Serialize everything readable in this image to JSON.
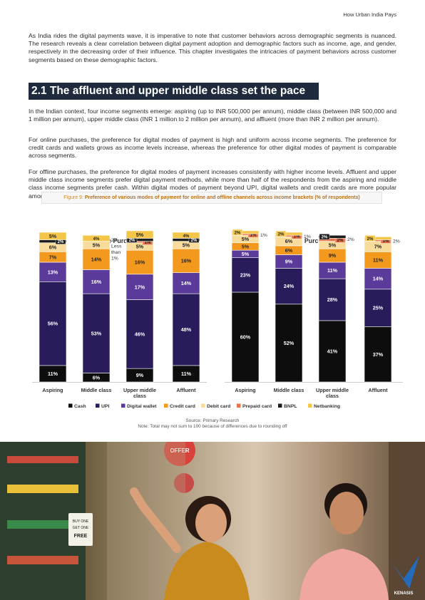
{
  "header": {
    "running_title": "How Urban India Pays"
  },
  "intro_paragraph": "As India rides the digital payments wave, it is imperative to note that customer behaviors across demographic segments is nuanced. The research reveals a clear correlation between digital payment adoption and demographic factors such as income, age, and gender, respectively in the decreasing order of their influence. This chapter investigates the intricacies of payment behaviors across customer segments based on these demographic factors.",
  "section": {
    "heading": "2.1 The affluent and upper middle class set the pace",
    "paragraphs": [
      "In the Indian context, four income segments emerge: aspiring (up to INR 500,000 per annum), middle class (between INR 500,000 and 1 million per annum), upper middle class (INR 1 million to 2 million per annum), and affluent (more than INR 2 million per annum).",
      "For online purchases, the preference for digital modes of payment is high and uniform across income segments. The preference for credit cards and wallets grows as income levels increase, whereas the preference for other digital modes of payment is comparable across segments.",
      "For offline purchases, the preference for digital modes of payment increases consistently with higher income levels. Affluent and upper middle class income segments prefer digital payment methods, while more than half of the respondents from the aspiring and middle class income segments prefer cash. Within digital modes of payment beyond UPI, digital wallets and credit cards are more popular among consumers from upper middle class and affluent income segments than in other segments."
    ]
  },
  "figure": {
    "label": "Figure 9: ",
    "title": "Preference of various modes of payment for online and offline channels across income brackets (% of respondents)",
    "source": "Source: Primary Research",
    "note": "Note: Total may not sum to 100 because of differences due to rounding off"
  },
  "chart_data": {
    "type": "bar",
    "stacked": true,
    "series_names": [
      "Cash",
      "UPI",
      "Digital wallet",
      "Credit card",
      "Debit card",
      "Prepaid card",
      "BNPL",
      "Netbanking"
    ],
    "colors": {
      "Cash": "#0d0d0d",
      "UPI": "#2a1c5a",
      "Digital wallet": "#5b3b9a",
      "Credit card": "#f39a1e",
      "Debit card": "#f7dc9c",
      "Prepaid card": "#e8734a",
      "BNPL": "#1c1c1c",
      "Netbanking": "#f3c64a"
    },
    "legend_position": "bottom",
    "panels": [
      {
        "title": "Online Purchases",
        "categories": [
          "Aspiring",
          "Middle class",
          "Upper middle class",
          "Affluent"
        ],
        "stacks": [
          [
            {
              "series": "Cash",
              "value": 11,
              "label": "11%"
            },
            {
              "series": "UPI",
              "value": 56,
              "label": "56%"
            },
            {
              "series": "Digital wallet",
              "value": 13,
              "label": "13%"
            },
            {
              "series": "Credit card",
              "value": 7,
              "label": "7%"
            },
            {
              "series": "Debit card",
              "value": 6,
              "label": "6%"
            },
            {
              "series": "BNPL",
              "value": 2,
              "label": "2%"
            },
            {
              "series": "Netbanking",
              "value": 5,
              "label": "5%"
            }
          ],
          [
            {
              "series": "Cash",
              "value": 6,
              "label": "6%"
            },
            {
              "series": "UPI",
              "value": 53,
              "label": "53%"
            },
            {
              "series": "Digital wallet",
              "value": 16,
              "label": "16%"
            },
            {
              "series": "Credit card",
              "value": 14,
              "label": "14%"
            },
            {
              "series": "Debit card",
              "value": 5,
              "label": "5%"
            },
            {
              "series": "Netbanking",
              "value": 4,
              "label": "4%"
            }
          ],
          [
            {
              "series": "Cash",
              "value": 9,
              "label": "9%"
            },
            {
              "series": "UPI",
              "value": 46,
              "label": "46%"
            },
            {
              "series": "Digital wallet",
              "value": 17,
              "label": "17%"
            },
            {
              "series": "Credit card",
              "value": 16,
              "label": "16%"
            },
            {
              "series": "Debit card",
              "value": 5,
              "label": "5%"
            },
            {
              "series": "Prepaid card",
              "value": 1,
              "label": "1%"
            },
            {
              "series": "BNPL",
              "value": 2,
              "label": "2%"
            },
            {
              "series": "Netbanking",
              "value": 5,
              "label": "5%"
            }
          ],
          [
            {
              "series": "Cash",
              "value": 11,
              "label": "11%"
            },
            {
              "series": "UPI",
              "value": 48,
              "label": "48%"
            },
            {
              "series": "Digital wallet",
              "value": 14,
              "label": "14%"
            },
            {
              "series": "Credit card",
              "value": 16,
              "label": "16%"
            },
            {
              "series": "Debit card",
              "value": 5,
              "label": "5%"
            },
            {
              "series": "BNPL",
              "value": 2,
              "label": "2%"
            },
            {
              "series": "Netbanking",
              "value": 4,
              "label": "4%"
            }
          ]
        ],
        "side_annotations": [
          {
            "category": 1,
            "text": [
              "2%",
              "Less",
              "than",
              "1%"
            ]
          }
        ]
      },
      {
        "title": "Offline Purchases",
        "categories": [
          "Aspiring",
          "Middle class",
          "Upper middle class",
          "Affluent"
        ],
        "stacks": [
          [
            {
              "series": "Cash",
              "value": 60,
              "label": "60%"
            },
            {
              "series": "UPI",
              "value": 23,
              "label": "23%"
            },
            {
              "series": "Digital wallet",
              "value": 5,
              "label": "5%"
            },
            {
              "series": "Credit card",
              "value": 5,
              "label": "5%"
            },
            {
              "series": "Debit card",
              "value": 5,
              "label": "5%"
            },
            {
              "series": "Prepaid card",
              "value": 1,
              "label": "1%"
            },
            {
              "series": "Netbanking",
              "value": 2,
              "label": "2%"
            }
          ],
          [
            {
              "series": "Cash",
              "value": 52,
              "label": "52%"
            },
            {
              "series": "UPI",
              "value": 24,
              "label": "24%"
            },
            {
              "series": "Digital wallet",
              "value": 9,
              "label": "9%"
            },
            {
              "series": "Credit card",
              "value": 6,
              "label": "6%"
            },
            {
              "series": "Debit card",
              "value": 6,
              "label": "6%"
            },
            {
              "series": "Prepaid card",
              "value": 1,
              "label": "1%"
            },
            {
              "series": "Netbanking",
              "value": 2,
              "label": "2%"
            }
          ],
          [
            {
              "series": "Cash",
              "value": 41,
              "label": "41%"
            },
            {
              "series": "UPI",
              "value": 28,
              "label": "28%"
            },
            {
              "series": "Digital wallet",
              "value": 11,
              "label": "11%"
            },
            {
              "series": "Credit card",
              "value": 9,
              "label": "9%"
            },
            {
              "series": "Debit card",
              "value": 5,
              "label": "5%"
            },
            {
              "series": "Prepaid card",
              "value": 2,
              "label": "2%"
            },
            {
              "series": "BNPL",
              "value": 2,
              "label": "2%"
            }
          ],
          [
            {
              "series": "Cash",
              "value": 37,
              "label": "37%"
            },
            {
              "series": "UPI",
              "value": 25,
              "label": "25%"
            },
            {
              "series": "Digital wallet",
              "value": 14,
              "label": "14%"
            },
            {
              "series": "Credit card",
              "value": 11,
              "label": "11%"
            },
            {
              "series": "Debit card",
              "value": 7,
              "label": "7%"
            },
            {
              "series": "Prepaid card",
              "value": 1,
              "label": "1%"
            },
            {
              "series": "Netbanking",
              "value": 2,
              "label": "2%"
            }
          ]
        ],
        "outside_labels": [
          {
            "category": 0,
            "text": "1%"
          },
          {
            "category": 1,
            "text": "1%"
          },
          {
            "category": 2,
            "text": "2%"
          },
          {
            "category": 3,
            "text": "2%"
          }
        ]
      }
    ]
  },
  "photo": {
    "subject": "Two shoppers in a grocery store aisle, woman pointing upward",
    "signs": [
      "OFFER",
      "BUY ONE GET ONE FREE"
    ],
    "watermark": "KENASIS"
  }
}
